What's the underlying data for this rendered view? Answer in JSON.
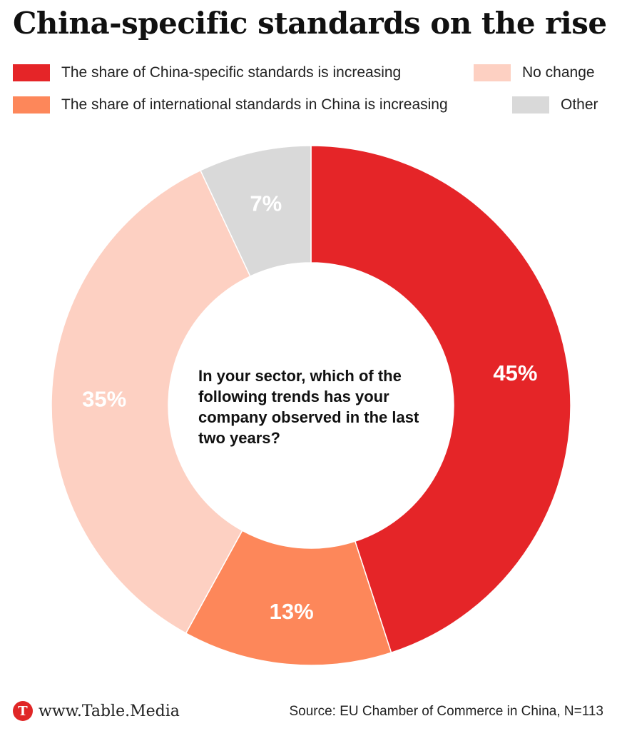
{
  "title": "China-specific standards on the rise",
  "chart_data": {
    "type": "pie",
    "donut": true,
    "question": "In your sector, which of the following trends has your company observed in the last two years?",
    "legend": [
      {
        "label": "The share of China-specific standards is increasing",
        "color": "#e52528"
      },
      {
        "label": "No change",
        "color": "#fdd0c2"
      },
      {
        "label": "The share of international standards in China is increasing",
        "color": "#fd875a"
      },
      {
        "label": "Other",
        "color": "#d9d9d9"
      }
    ],
    "slices": [
      {
        "label": "The share of China-specific standards is increasing",
        "value": 45,
        "display": "45%",
        "color": "#e52528"
      },
      {
        "label": "The share of international standards in China is increasing",
        "value": 13,
        "display": "13%",
        "color": "#fd875a"
      },
      {
        "label": "No change",
        "value": 35,
        "display": "35%",
        "color": "#fdd0c2"
      },
      {
        "label": "Other",
        "value": 7,
        "display": "7%",
        "color": "#d9d9d9"
      }
    ]
  },
  "footer": {
    "logo_letter": "T",
    "brand": "www.Table.Media",
    "source": "Source: EU Chamber of Commerce in China, N=113"
  }
}
